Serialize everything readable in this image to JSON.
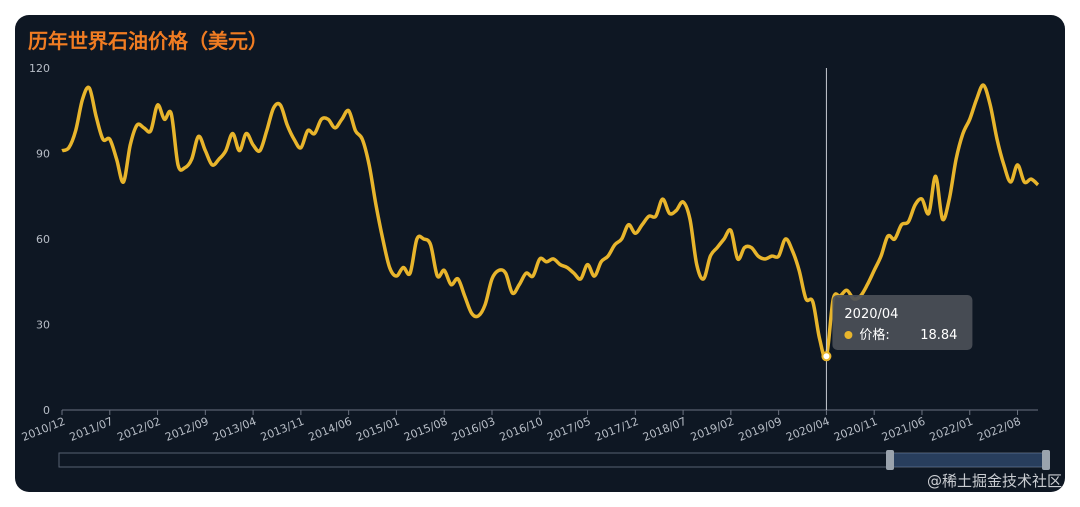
{
  "chart_data": {
    "type": "line",
    "title": "历年世界石油价格（美元）",
    "categories": [
      "2010/12",
      null,
      null,
      null,
      null,
      null,
      null,
      "2011/07",
      null,
      null,
      null,
      null,
      null,
      null,
      "2012/02",
      null,
      null,
      null,
      null,
      null,
      null,
      "2012/09",
      null,
      null,
      null,
      null,
      null,
      null,
      "2013/04",
      null,
      null,
      null,
      null,
      null,
      null,
      "2013/11",
      null,
      null,
      null,
      null,
      null,
      null,
      "2014/06",
      null,
      null,
      null,
      null,
      null,
      null,
      "2015/01",
      null,
      null,
      null,
      null,
      null,
      null,
      "2015/08",
      null,
      null,
      null,
      null,
      null,
      null,
      "2016/03",
      null,
      null,
      null,
      null,
      null,
      null,
      "2016/10",
      null,
      null,
      null,
      null,
      null,
      null,
      "2017/05",
      null,
      null,
      null,
      null,
      null,
      null,
      "2017/12",
      null,
      null,
      null,
      null,
      null,
      null,
      "2018/07",
      null,
      null,
      null,
      null,
      null,
      null,
      "2019/02",
      null,
      null,
      null,
      null,
      null,
      null,
      "2019/09",
      null,
      null,
      null,
      null,
      null,
      null,
      "2020/04",
      null,
      null,
      null,
      null,
      null,
      null,
      "2020/11",
      null,
      null,
      null,
      null,
      null,
      null,
      "2021/06",
      null,
      null,
      null,
      null,
      null,
      null,
      "2022/01",
      null,
      null,
      null,
      null,
      null,
      null,
      "2022/08",
      null,
      null,
      null
    ],
    "series": [
      {
        "name": "价格:",
        "color": "#e8b52c",
        "values": [
          91,
          92,
          98,
          109,
          113,
          103,
          95,
          95,
          88,
          80,
          93,
          100,
          99,
          98,
          107,
          102,
          104,
          86,
          85,
          88,
          96,
          91,
          86,
          88,
          91,
          97,
          91,
          97,
          93,
          91,
          98,
          106,
          107,
          100,
          95,
          92,
          98,
          97,
          102,
          102,
          99,
          102,
          105,
          98,
          95,
          86,
          72,
          60,
          50,
          47,
          50,
          48,
          60,
          60,
          58,
          47,
          49,
          44,
          46,
          40,
          34,
          33,
          37,
          46,
          49,
          48,
          41,
          44,
          48,
          47,
          53,
          52,
          53,
          51,
          50,
          48,
          46,
          51,
          47,
          52,
          54,
          58,
          60,
          65,
          62,
          65,
          68,
          68,
          74,
          69,
          70,
          73,
          67,
          51,
          46,
          54,
          57,
          60,
          63,
          53,
          57,
          57,
          54,
          53,
          54,
          54,
          60,
          56,
          49,
          39,
          38,
          25,
          18.84,
          39,
          40,
          42,
          39,
          40,
          44,
          49,
          54,
          61,
          60,
          65,
          66,
          72,
          74,
          69,
          82,
          67,
          74,
          88,
          97,
          102,
          109,
          114,
          107,
          95,
          86,
          80,
          86,
          80,
          81,
          79
        ]
      }
    ],
    "ylim": [
      0,
      120
    ],
    "yticks": [
      0,
      30,
      60,
      90,
      120
    ],
    "grid": false,
    "tooltip_index": 112,
    "watermark": "@稀土掘金技术社区"
  }
}
